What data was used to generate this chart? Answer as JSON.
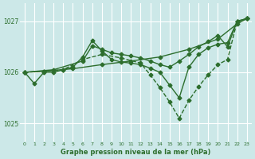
{
  "bg_color": "#cce8e8",
  "grid_color": "#ffffff",
  "line_color": "#2d6e2d",
  "title": "Graphe pression niveau de la mer (hPa)",
  "xlim": [
    -0.5,
    23.5
  ],
  "ylim": [
    1024.65,
    1027.35
  ],
  "yticks": [
    1025,
    1026,
    1027
  ],
  "xticks": [
    0,
    1,
    2,
    3,
    4,
    5,
    6,
    7,
    8,
    9,
    10,
    11,
    12,
    13,
    14,
    15,
    16,
    17,
    18,
    19,
    20,
    21,
    22,
    23
  ],
  "lines": [
    {
      "x": [
        0,
        2,
        5,
        8,
        11,
        14,
        17,
        20,
        22,
        23
      ],
      "y": [
        1026.0,
        1026.02,
        1026.07,
        1026.15,
        1026.22,
        1026.3,
        1026.45,
        1026.65,
        1026.95,
        1027.05
      ],
      "style": "-",
      "marker": "D",
      "markersize": 2.5,
      "linewidth": 1.0
    },
    {
      "x": [
        0,
        1,
        2,
        3,
        4,
        5,
        6,
        7,
        8,
        9,
        10,
        11,
        12,
        13,
        14,
        15,
        16,
        17,
        18,
        19,
        20,
        21,
        22,
        23
      ],
      "y": [
        1026.0,
        1025.78,
        1026.0,
        1026.0,
        1026.05,
        1026.1,
        1026.3,
        1026.62,
        1026.42,
        1026.25,
        1026.2,
        1026.18,
        1026.15,
        1026.08,
        1026.0,
        1025.75,
        1025.5,
        1026.1,
        1026.35,
        1026.48,
        1026.55,
        1026.58,
        1027.0,
        1027.05
      ],
      "style": "-",
      "marker": "D",
      "markersize": 2.5,
      "linewidth": 1.0
    },
    {
      "x": [
        0,
        2,
        4,
        6,
        8,
        10,
        12,
        13,
        14,
        15,
        16,
        17,
        18,
        19,
        20,
        21,
        22,
        23
      ],
      "y": [
        1026.0,
        1026.02,
        1026.05,
        1026.25,
        1026.35,
        1026.28,
        1026.18,
        1025.95,
        1025.7,
        1025.42,
        1025.1,
        1025.45,
        1025.72,
        1025.95,
        1026.15,
        1026.25,
        1027.0,
        1027.05
      ],
      "style": "--",
      "marker": "D",
      "markersize": 2.5,
      "linewidth": 1.0
    },
    {
      "x": [
        0,
        3,
        6,
        7,
        8,
        9,
        10,
        11,
        12,
        13,
        14,
        15,
        16,
        17,
        18,
        19,
        20,
        21,
        22,
        23
      ],
      "y": [
        1026.0,
        1026.05,
        1026.22,
        1026.52,
        1026.45,
        1026.38,
        1026.35,
        1026.32,
        1026.28,
        1026.22,
        1026.15,
        1026.1,
        1026.22,
        1026.35,
        1026.5,
        1026.6,
        1026.72,
        1026.5,
        1027.0,
        1027.05
      ],
      "style": "-",
      "marker": "D",
      "markersize": 2.5,
      "linewidth": 1.0
    }
  ]
}
